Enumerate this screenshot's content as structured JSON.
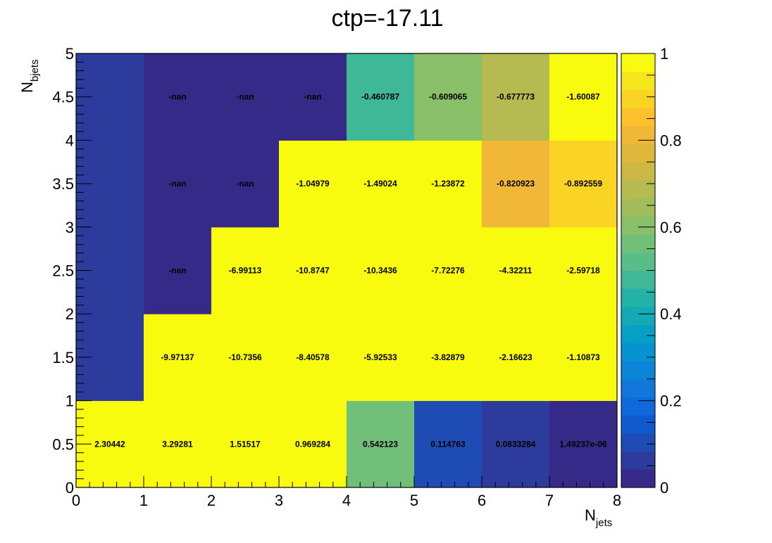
{
  "chart_data": {
    "type": "heatmap",
    "title": "ctp=-17.11",
    "xlabel": "N",
    "xlabel_sub": "jets",
    "ylabel": "N",
    "ylabel_sub": "bjets",
    "xlim": [
      0,
      8
    ],
    "ylim": [
      0,
      5
    ],
    "x_ticks": [
      "0",
      "1",
      "2",
      "3",
      "4",
      "5",
      "6",
      "7",
      "8"
    ],
    "y_ticks": [
      "0",
      "0.5",
      "1",
      "1.5",
      "2",
      "2.5",
      "3",
      "3.5",
      "4",
      "4.5",
      "5"
    ],
    "colorbar": {
      "range": [
        0,
        1
      ],
      "ticks": [
        "0",
        "0.2",
        "0.4",
        "0.6",
        "0.8",
        "1"
      ]
    },
    "palette": [
      "#352a87",
      "#2c3b9c",
      "#1f4bb4",
      "#1059cf",
      "#0f68dc",
      "#1177db",
      "#0b86d6",
      "#0594d0",
      "#06a0c4",
      "#13aab5",
      "#23b2a6",
      "#3eb897",
      "#59bd89",
      "#72bf79",
      "#8abf6a",
      "#a1bd5c",
      "#b6bb51",
      "#cbb845",
      "#dfb73a",
      "#f1b737",
      "#fcc12d",
      "#fad424",
      "#f6e61e",
      "#f9fb0e"
    ],
    "cells": [
      {
        "x": 0,
        "y": 0,
        "label": "2.30442",
        "color_value": 1.0
      },
      {
        "x": 1,
        "y": 0,
        "label": "3.29281",
        "color_value": 1.0
      },
      {
        "x": 2,
        "y": 0,
        "label": "1.51517",
        "color_value": 1.0
      },
      {
        "x": 3,
        "y": 0,
        "label": "0.969284",
        "color_value": 1.0
      },
      {
        "x": 4,
        "y": 0,
        "label": "0.542123",
        "color_value": 0.542123
      },
      {
        "x": 5,
        "y": 0,
        "label": "0.114763",
        "color_value": 0.114763
      },
      {
        "x": 6,
        "y": 0,
        "label": "0.0833284",
        "color_value": 0.0833284
      },
      {
        "x": 7,
        "y": 0,
        "label": "1.49237e-06",
        "color_value": 0.0
      },
      {
        "x": 0,
        "y": 1,
        "label": "",
        "color_value": 0.07
      },
      {
        "x": 1,
        "y": 1,
        "label": "-9.97137",
        "color_value": 1.0
      },
      {
        "x": 2,
        "y": 1,
        "label": "-10.7356",
        "color_value": 1.0
      },
      {
        "x": 3,
        "y": 1,
        "label": "-8.40578",
        "color_value": 1.0
      },
      {
        "x": 4,
        "y": 1,
        "label": "-5.92533",
        "color_value": 1.0
      },
      {
        "x": 5,
        "y": 1,
        "label": "-3.82879",
        "color_value": 1.0
      },
      {
        "x": 6,
        "y": 1,
        "label": "-2.16623",
        "color_value": 1.0
      },
      {
        "x": 7,
        "y": 1,
        "label": "-1.10873",
        "color_value": 1.0
      },
      {
        "x": 0,
        "y": 2,
        "label": "",
        "color_value": 0.07
      },
      {
        "x": 1,
        "y": 2,
        "label": "-nan",
        "color_value": 0.0
      },
      {
        "x": 2,
        "y": 2,
        "label": "-6.99113",
        "color_value": 1.0
      },
      {
        "x": 3,
        "y": 2,
        "label": "-10.8747",
        "color_value": 1.0
      },
      {
        "x": 4,
        "y": 2,
        "label": "-10.3436",
        "color_value": 1.0
      },
      {
        "x": 5,
        "y": 2,
        "label": "-7.72276",
        "color_value": 1.0
      },
      {
        "x": 6,
        "y": 2,
        "label": "-4.32211",
        "color_value": 1.0
      },
      {
        "x": 7,
        "y": 2,
        "label": "-2.59718",
        "color_value": 1.0
      },
      {
        "x": 0,
        "y": 3,
        "label": "",
        "color_value": 0.07
      },
      {
        "x": 1,
        "y": 3,
        "label": "-nan",
        "color_value": 0.0
      },
      {
        "x": 2,
        "y": 3,
        "label": "-nan",
        "color_value": 0.0
      },
      {
        "x": 3,
        "y": 3,
        "label": "-1.04979",
        "color_value": 1.0
      },
      {
        "x": 4,
        "y": 3,
        "label": "-1.49024",
        "color_value": 1.0
      },
      {
        "x": 5,
        "y": 3,
        "label": "-1.23872",
        "color_value": 1.0
      },
      {
        "x": 6,
        "y": 3,
        "label": "-0.820923",
        "color_value": 0.82
      },
      {
        "x": 7,
        "y": 3,
        "label": "-0.892559",
        "color_value": 0.89
      },
      {
        "x": 0,
        "y": 4,
        "label": "",
        "color_value": 0.07
      },
      {
        "x": 1,
        "y": 4,
        "label": "-nan",
        "color_value": 0.0
      },
      {
        "x": 2,
        "y": 4,
        "label": "-nan",
        "color_value": 0.0
      },
      {
        "x": 3,
        "y": 4,
        "label": "-nan",
        "color_value": 0.0
      },
      {
        "x": 4,
        "y": 4,
        "label": "-0.460787",
        "color_value": 0.46
      },
      {
        "x": 5,
        "y": 4,
        "label": "-0.609065",
        "color_value": 0.61
      },
      {
        "x": 6,
        "y": 4,
        "label": "-0.677773",
        "color_value": 0.68
      },
      {
        "x": 7,
        "y": 4,
        "label": "-1.60087",
        "color_value": 1.0
      }
    ]
  }
}
